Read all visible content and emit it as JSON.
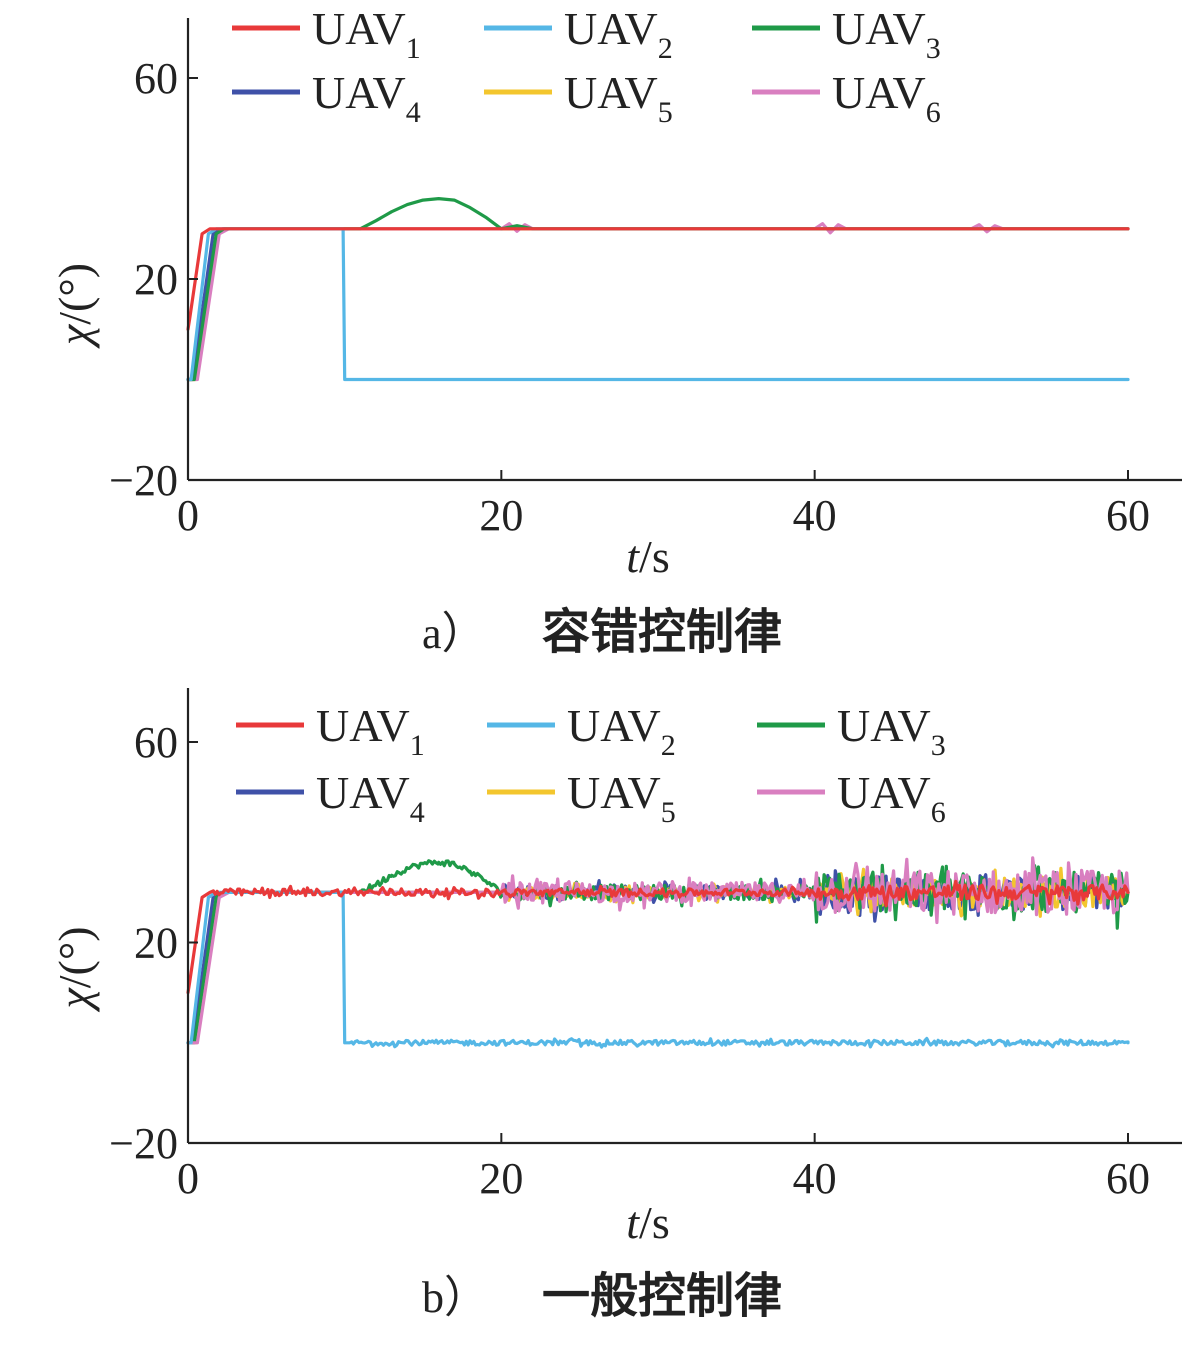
{
  "colors": {
    "UAV1": "#e8393a",
    "UAV2": "#55b7e6",
    "UAV3": "#1f9a48",
    "UAV4": "#3f51a8",
    "UAV5": "#f3c62e",
    "UAV6": "#d97fc0"
  },
  "chart_data": [
    {
      "type": "line",
      "caption_label": "a）",
      "caption_text": "容错控制律",
      "xlabel_var": "t",
      "xlabel_unit": "/s",
      "ylabel_var": "χ",
      "ylabel_unit": "/(°)",
      "xlim": [
        0,
        60
      ],
      "ylim": [
        -20,
        60
      ],
      "xticks": [
        "0",
        "20",
        "40",
        "60"
      ],
      "xtick_values": [
        0,
        20,
        40,
        60
      ],
      "yticks": [
        "−20",
        "20",
        "60"
      ],
      "ytick_values": [
        -20,
        20,
        60
      ],
      "legend": {
        "placement": "top",
        "entries": [
          {
            "base": "UAV",
            "sub": "1",
            "color_key": "UAV1"
          },
          {
            "base": "UAV",
            "sub": "2",
            "color_key": "UAV2"
          },
          {
            "base": "UAV",
            "sub": "3",
            "color_key": "UAV3"
          },
          {
            "base": "UAV",
            "sub": "4",
            "color_key": "UAV4"
          },
          {
            "base": "UAV",
            "sub": "5",
            "color_key": "UAV5"
          },
          {
            "base": "UAV",
            "sub": "6",
            "color_key": "UAV6"
          }
        ]
      },
      "series": [
        {
          "name": "UAV4",
          "color_key": "UAV4",
          "x": [
            0,
            0.3,
            1.6,
            2.2,
            60
          ],
          "y": [
            0,
            0,
            29,
            30,
            30
          ],
          "noise": 0
        },
        {
          "name": "UAV5",
          "color_key": "UAV5",
          "x": [
            0,
            0.5,
            1.9,
            2.4,
            60
          ],
          "y": [
            0,
            0,
            29,
            30,
            30
          ],
          "noise": 0
        },
        {
          "name": "UAV6",
          "color_key": "UAV6",
          "x": [
            0,
            0.6,
            2.0,
            2.6,
            20,
            20.5,
            21,
            21.5,
            22,
            40,
            40.5,
            41,
            41.5,
            42,
            50,
            50.5,
            51,
            51.5,
            52,
            60
          ],
          "y": [
            0,
            0,
            29,
            30,
            30,
            31,
            29.5,
            30.8,
            30,
            30,
            31,
            29.2,
            30.8,
            30,
            30,
            30.8,
            29.4,
            30.6,
            30,
            30
          ],
          "noise": 0
        },
        {
          "name": "UAV3",
          "color_key": "UAV3",
          "x": [
            0,
            0.4,
            1.8,
            2.3,
            11,
            12,
            13,
            14,
            15,
            16,
            17,
            18,
            19,
            20,
            21,
            22,
            60
          ],
          "y": [
            0,
            0,
            29,
            30,
            30,
            31.6,
            33.4,
            34.8,
            35.7,
            36,
            35.7,
            34.2,
            32.3,
            30,
            30.6,
            30,
            30
          ],
          "noise": 0
        },
        {
          "name": "UAV2",
          "color_key": "UAV2",
          "x": [
            0,
            0.2,
            1.3,
            1.8,
            9.9,
            10,
            60
          ],
          "y": [
            0,
            0,
            29,
            30,
            30,
            0,
            0
          ],
          "noise": 0
        },
        {
          "name": "UAV1",
          "color_key": "UAV1",
          "x": [
            0,
            0.1,
            0.9,
            1.4,
            60
          ],
          "y": [
            10,
            12,
            29,
            30,
            30
          ],
          "noise": 0
        }
      ]
    },
    {
      "type": "line",
      "caption_label": "b）",
      "caption_text": "一般控制律",
      "xlabel_var": "t",
      "xlabel_unit": "/s",
      "ylabel_var": "χ",
      "ylabel_unit": "/(°)",
      "xlim": [
        0,
        60
      ],
      "ylim": [
        -20,
        60
      ],
      "xticks": [
        "0",
        "20",
        "40",
        "60"
      ],
      "xtick_values": [
        0,
        20,
        40,
        60
      ],
      "yticks": [
        "−20",
        "20",
        "60"
      ],
      "ytick_values": [
        -20,
        20,
        60
      ],
      "legend": {
        "placement": "top",
        "entries": [
          {
            "base": "UAV",
            "sub": "1",
            "color_key": "UAV1"
          },
          {
            "base": "UAV",
            "sub": "2",
            "color_key": "UAV2"
          },
          {
            "base": "UAV",
            "sub": "3",
            "color_key": "UAV3"
          },
          {
            "base": "UAV",
            "sub": "4",
            "color_key": "UAV4"
          },
          {
            "base": "UAV",
            "sub": "5",
            "color_key": "UAV5"
          },
          {
            "base": "UAV",
            "sub": "6",
            "color_key": "UAV6"
          }
        ]
      },
      "series": [
        {
          "name": "UAV4",
          "color_key": "UAV4",
          "x": [
            0,
            0.3,
            1.6,
            2.2,
            20,
            40,
            60
          ],
          "y": [
            0,
            0,
            29,
            30,
            30,
            30,
            30
          ],
          "noise_ranges": [
            [
              20,
              40,
              1.5
            ],
            [
              40,
              60,
              3.5
            ]
          ]
        },
        {
          "name": "UAV5",
          "color_key": "UAV5",
          "x": [
            0,
            0.5,
            1.9,
            2.4,
            20,
            40,
            60
          ],
          "y": [
            0,
            0,
            29,
            30,
            30,
            30,
            30
          ],
          "noise_ranges": [
            [
              20,
              40,
              1.2
            ],
            [
              40,
              60,
              3
            ]
          ]
        },
        {
          "name": "UAV3",
          "color_key": "UAV3",
          "x": [
            0,
            0.4,
            1.8,
            2.3,
            11,
            12,
            13,
            14,
            15,
            16,
            17,
            18,
            19,
            20,
            40,
            60
          ],
          "y": [
            0,
            0,
            29,
            30,
            30,
            31.6,
            33.4,
            34.8,
            35.7,
            36,
            35.7,
            34.2,
            32.3,
            30,
            30,
            30
          ],
          "noise_ranges": [
            [
              11,
              20,
              0.6
            ],
            [
              20,
              40,
              1.5
            ],
            [
              40,
              60,
              4
            ]
          ]
        },
        {
          "name": "UAV6",
          "color_key": "UAV6",
          "x": [
            0,
            0.6,
            2.0,
            2.6,
            20,
            40,
            60
          ],
          "y": [
            0,
            0,
            29,
            30,
            30,
            30,
            30
          ],
          "noise_ranges": [
            [
              20,
              40,
              2
            ],
            [
              40,
              60,
              4.5
            ]
          ]
        },
        {
          "name": "UAV2",
          "color_key": "UAV2",
          "x": [
            0,
            0.2,
            1.3,
            1.8,
            9.9,
            10,
            60
          ],
          "y": [
            0,
            0,
            29,
            30,
            30,
            0,
            0
          ],
          "noise_ranges": [
            [
              10.2,
              60,
              0.5
            ]
          ]
        },
        {
          "name": "UAV1",
          "color_key": "UAV1",
          "x": [
            0,
            0.1,
            0.9,
            1.4,
            60
          ],
          "y": [
            10,
            12,
            29,
            30,
            30
          ],
          "noise_ranges": [
            [
              1.5,
              40,
              0.7
            ],
            [
              40,
              60,
              1.5
            ]
          ]
        }
      ]
    }
  ]
}
